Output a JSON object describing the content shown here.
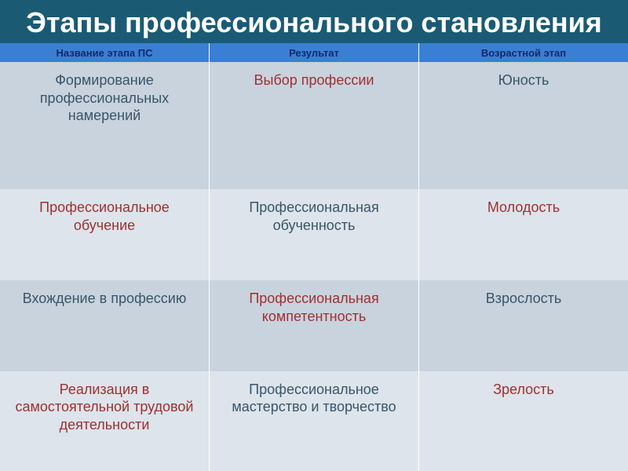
{
  "title": "Этапы профессионального становления",
  "title_style": {
    "bg": "#1a5b73",
    "fg": "#ffffff",
    "fontsize": 36
  },
  "header": {
    "bg": "#3a7fd4",
    "fg": "#102a6b",
    "fontsize": 13,
    "height": 24,
    "cells": [
      "Название этапа ПС",
      "Результат",
      "Возрастной этап"
    ]
  },
  "body": {
    "fontsize": 18,
    "text_color_variant": "#a03030",
    "text_color_normal": "#3a5568",
    "row_bg_odd": "#c8d3de",
    "row_bg_even": "#dde4eb",
    "rows": [
      {
        "height_weight": 1.4,
        "cells": [
          {
            "text": "Формирование профессиональных намерений",
            "variant": false
          },
          {
            "text": "Выбор профессии",
            "variant": true
          },
          {
            "text": "Юность",
            "variant": false
          }
        ]
      },
      {
        "height_weight": 1.0,
        "cells": [
          {
            "text": "Профессиональное обучение",
            "variant": true
          },
          {
            "text": "Профессиональная обученность",
            "variant": false
          },
          {
            "text": "Молодость",
            "variant": true
          }
        ]
      },
      {
        "height_weight": 1.0,
        "cells": [
          {
            "text": "Вхождение в профессию",
            "variant": false
          },
          {
            "text": "Профессиональная компетентность",
            "variant": true
          },
          {
            "text": "Взрослость",
            "variant": false
          }
        ]
      },
      {
        "height_weight": 1.1,
        "cells": [
          {
            "text": "Реализация в самостоятельной трудовой  деятельности",
            "variant": true
          },
          {
            "text": "Профессиональное мастерство и творчество",
            "variant": false
          },
          {
            "text": "Зрелость",
            "variant": true
          }
        ]
      }
    ]
  }
}
